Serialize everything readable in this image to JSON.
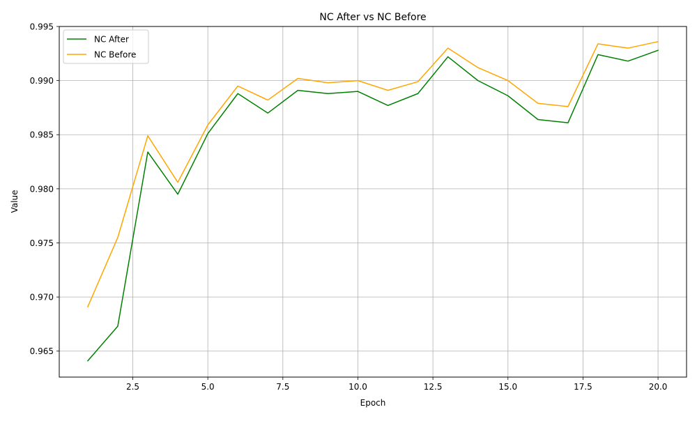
{
  "chart_data": {
    "type": "line",
    "title": "NC After vs NC Before",
    "xlabel": "Epoch",
    "ylabel": "Value",
    "x": [
      1,
      2,
      3,
      4,
      5,
      6,
      7,
      8,
      9,
      10,
      11,
      12,
      13,
      14,
      15,
      16,
      17,
      18,
      19,
      20
    ],
    "xlim": [
      0.05,
      20.95
    ],
    "ylim": [
      0.9626,
      0.995
    ],
    "xticks": [
      2.5,
      5.0,
      7.5,
      10.0,
      12.5,
      15.0,
      17.5,
      20.0
    ],
    "xtick_labels": [
      "2.5",
      "5.0",
      "7.5",
      "10.0",
      "12.5",
      "15.0",
      "17.5",
      "20.0"
    ],
    "yticks": [
      0.965,
      0.97,
      0.975,
      0.98,
      0.985,
      0.99,
      0.995
    ],
    "ytick_labels": [
      "0.965",
      "0.970",
      "0.975",
      "0.980",
      "0.985",
      "0.990",
      "0.995"
    ],
    "grid": true,
    "legend_position": "top-left",
    "series": [
      {
        "name": "NC After",
        "color": "#008000",
        "values": [
          0.9641,
          0.9673,
          0.9834,
          0.9795,
          0.9851,
          0.9888,
          0.987,
          0.9891,
          0.9888,
          0.989,
          0.9877,
          0.9888,
          0.9922,
          0.99,
          0.9886,
          0.9864,
          0.9861,
          0.9924,
          0.9918,
          0.9928
        ]
      },
      {
        "name": "NC Before",
        "color": "#FFA500",
        "values": [
          0.9691,
          0.9755,
          0.9849,
          0.9806,
          0.9859,
          0.9895,
          0.9882,
          0.9902,
          0.9898,
          0.99,
          0.9891,
          0.9899,
          0.993,
          0.9912,
          0.99,
          0.9879,
          0.9876,
          0.9934,
          0.993,
          0.9936
        ]
      }
    ]
  }
}
